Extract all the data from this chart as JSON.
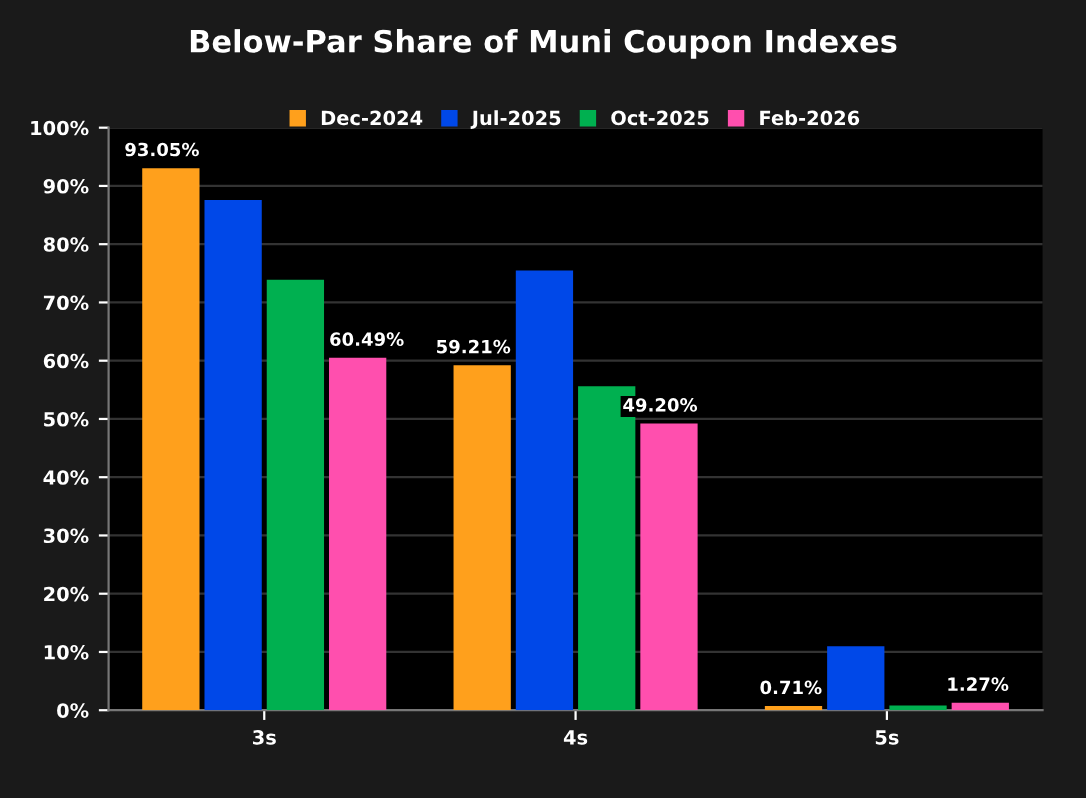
{
  "chart_data": {
    "type": "bar",
    "title": "Below-Par Share of Muni Coupon Indexes",
    "categories": [
      "3s",
      "4s",
      "5s"
    ],
    "series": [
      {
        "name": "Dec-2024",
        "color": "#ffa01c",
        "values": [
          93.05,
          59.21,
          0.71
        ],
        "value_labels": [
          "93.05%",
          "59.21%",
          "0.71%"
        ]
      },
      {
        "name": "Jul-2025",
        "color": "#0048e8",
        "values": [
          87.6,
          75.5,
          11.0
        ],
        "value_labels": [
          null,
          null,
          null
        ]
      },
      {
        "name": "Oct-2025",
        "color": "#00b050",
        "values": [
          73.9,
          55.6,
          0.8
        ],
        "value_labels": [
          null,
          null,
          null
        ]
      },
      {
        "name": "Feb-2026",
        "color": "#ff4fae",
        "values": [
          60.49,
          49.2,
          1.27
        ],
        "value_labels": [
          "60.49%",
          "49.20%",
          "1.27%"
        ]
      }
    ],
    "ylim": [
      0,
      100
    ],
    "yticks": [
      {
        "value": 0,
        "label": "0%"
      },
      {
        "value": 10,
        "label": "10%"
      },
      {
        "value": 20,
        "label": "20%"
      },
      {
        "value": 30,
        "label": "30%"
      },
      {
        "value": 40,
        "label": "40%"
      },
      {
        "value": 50,
        "label": "50%"
      },
      {
        "value": 60,
        "label": "60%"
      },
      {
        "value": 70,
        "label": "70%"
      },
      {
        "value": 80,
        "label": "80%"
      },
      {
        "value": 90,
        "label": "90%"
      },
      {
        "value": 100,
        "label": "100%"
      }
    ],
    "grid": "y",
    "legend": "top"
  }
}
